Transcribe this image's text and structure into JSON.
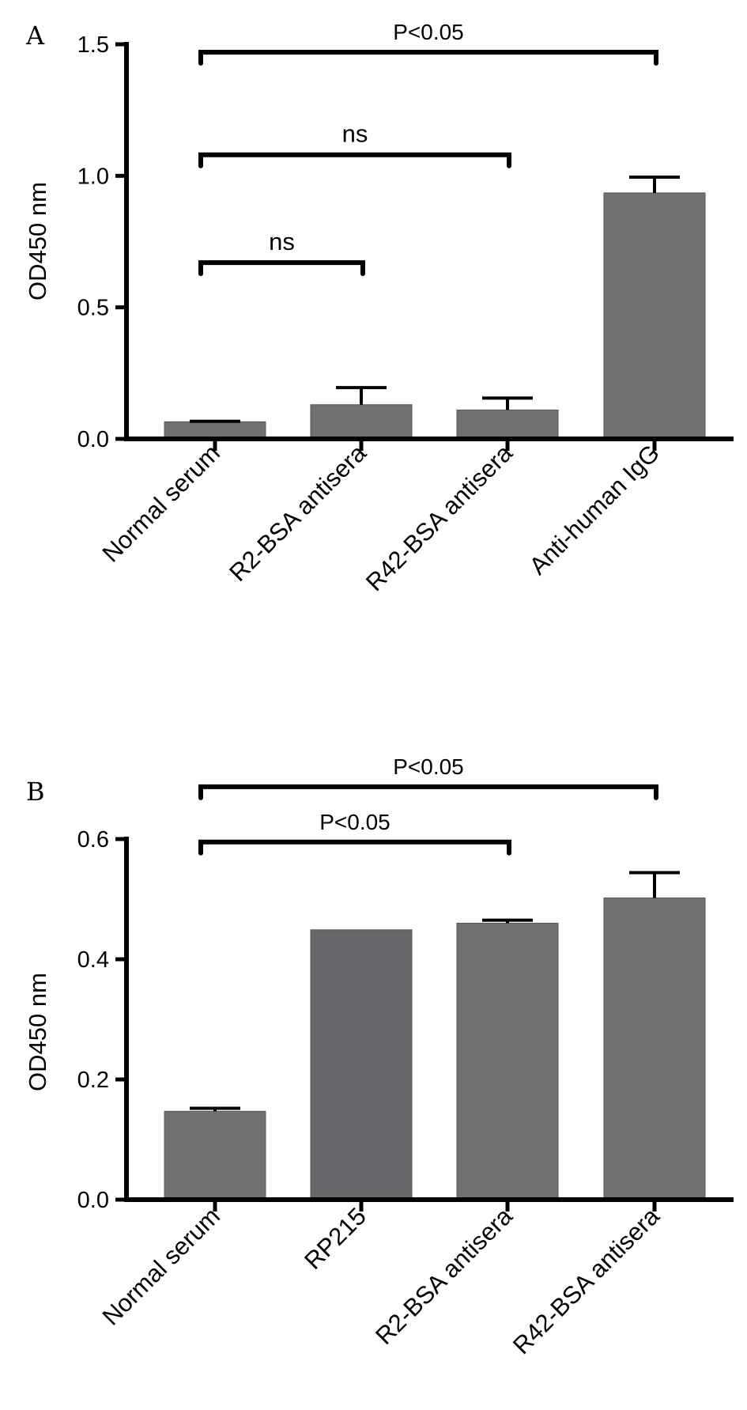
{
  "chart_data": [
    {
      "panel": "A",
      "type": "bar",
      "ylabel": "OD450 nm",
      "ylim": [
        0,
        1.5
      ],
      "yticks": [
        "0.0",
        "0.5",
        "1.0",
        "1.5"
      ],
      "categories": [
        "Normal serum",
        "R2-BSA antisera",
        "R42-BSA antisera",
        "Anti-human IgG"
      ],
      "values": [
        0.065,
        0.13,
        0.11,
        0.935
      ],
      "errors": [
        0.002,
        0.065,
        0.045,
        0.06
      ],
      "bar_colors": [
        "#717171",
        "#717171",
        "#717171",
        "#717171"
      ],
      "significance": [
        {
          "from": 0,
          "to": 3,
          "label": "P<0.05",
          "level": 1.47
        },
        {
          "from": 0,
          "to": 2,
          "label": "ns",
          "level": 1.08
        },
        {
          "from": 0,
          "to": 1,
          "label": "ns",
          "level": 0.67
        }
      ],
      "grid": false,
      "legend": "none"
    },
    {
      "panel": "B",
      "type": "bar",
      "ylabel": "OD450 nm",
      "ylim": [
        0,
        0.6
      ],
      "yticks": [
        "0.0",
        "0.2",
        "0.4",
        "0.6"
      ],
      "categories": [
        "Normal serum",
        "RP215",
        "R2-BSA antisera",
        "R42-BSA antisera"
      ],
      "values": [
        0.147,
        0.449,
        0.46,
        0.502
      ],
      "errors": [
        0.005,
        0.0,
        0.005,
        0.042
      ],
      "bar_colors": [
        "#717171",
        "#68686c",
        "#717171",
        "#717171"
      ],
      "significance": [
        {
          "from": 0,
          "to": 3,
          "label": "P<0.05",
          "level": 0.687
        },
        {
          "from": 0,
          "to": 2,
          "label": "P<0.05",
          "level": 0.595
        }
      ],
      "grid": false,
      "legend": "none"
    }
  ]
}
